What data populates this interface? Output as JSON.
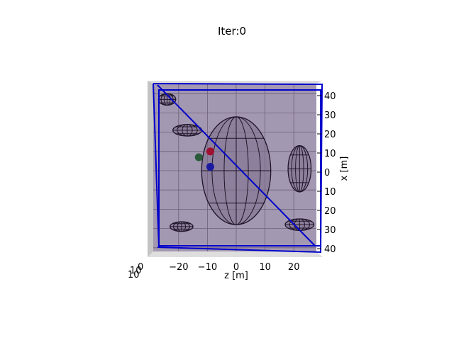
{
  "chart_data": {
    "type": "3d-wireframe",
    "title": "Iter:0",
    "xlabel": "z [m]",
    "ylabel": "x [m]",
    "x_ticks": [
      -20,
      -10,
      0,
      10,
      20
    ],
    "y_ticks": [
      40,
      30,
      20,
      10,
      0,
      10,
      20,
      30,
      40
    ],
    "z_tick_labels_overlapping": [
      "10",
      "10",
      "0"
    ],
    "xlim": [
      -27,
      27
    ],
    "ylim": [
      -43,
      43
    ],
    "grid": true,
    "markers": [
      {
        "color": "#a01030",
        "z": -9,
        "x": 10
      },
      {
        "color": "#2a5a3a",
        "z": -13,
        "x": 7
      },
      {
        "color": "#1a1aa0",
        "z": -9,
        "x": 2
      }
    ],
    "obstacles": [
      {
        "kind": "large-ellipsoid",
        "z": 0,
        "x": 0,
        "rz": 12,
        "rx": 28
      },
      {
        "kind": "small-ellipsoid",
        "z": 22,
        "x": 1,
        "rz": 4,
        "rx": 12
      },
      {
        "kind": "small-ellipsoid",
        "z": -24,
        "x": 37,
        "rz": 3,
        "rx": 3
      },
      {
        "kind": "small-ellipsoid",
        "z": -17,
        "x": 21,
        "rz": 5,
        "rx": 3
      },
      {
        "kind": "small-ellipsoid",
        "z": -19,
        "x": -29,
        "rz": 4,
        "rx": 2.5
      },
      {
        "kind": "small-ellipsoid",
        "z": 22,
        "x": -28,
        "rz": 5,
        "rx": 3
      }
    ],
    "colors": {
      "plane": "#9e92ad",
      "boundary": "#0000cc",
      "wire": "#1e1428"
    }
  }
}
